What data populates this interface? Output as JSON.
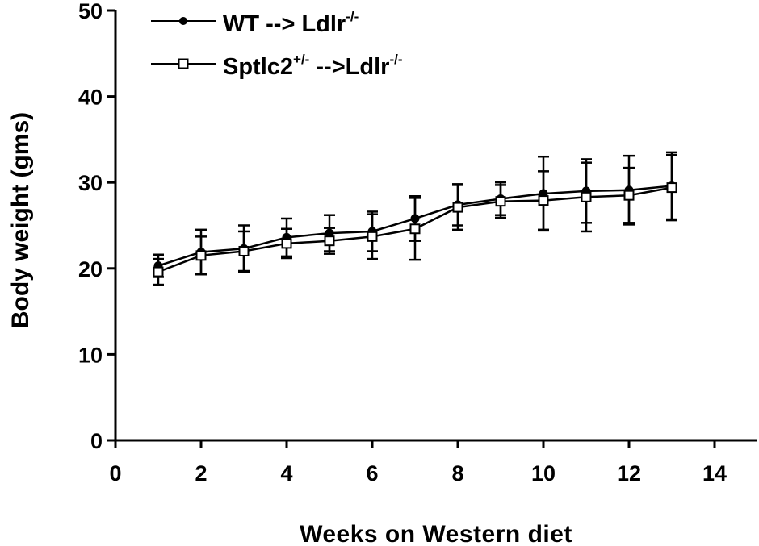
{
  "chart_data": {
    "type": "line",
    "xlabel": "Weeks on Western diet",
    "ylabel": "Body weight (gms)",
    "xlim": [
      0,
      14
    ],
    "ylim": [
      0,
      50
    ],
    "x_ticks": [
      "0",
      "2",
      "4",
      "6",
      "8",
      "10",
      "12",
      "14"
    ],
    "y_ticks": [
      "0",
      "10",
      "20",
      "30",
      "40",
      "50"
    ],
    "grid": false,
    "legend_position": "top-left",
    "x": [
      1,
      2,
      3,
      4,
      5,
      6,
      7,
      8,
      9,
      10,
      11,
      12,
      13
    ],
    "series": [
      {
        "name": "WT --> Ldlr",
        "name_sup": "-/-",
        "marker": "filled-circle",
        "values": [
          20.3,
          21.9,
          22.3,
          23.6,
          24.1,
          24.3,
          25.8,
          27.4,
          28.1,
          28.7,
          29.0,
          29.1,
          29.6
        ],
        "errors": [
          1.3,
          2.6,
          2.7,
          2.2,
          2.1,
          2.3,
          2.6,
          2.4,
          1.9,
          4.3,
          3.7,
          4.0,
          3.9
        ]
      },
      {
        "name_parts": [
          "Sptlc2",
          "+/-",
          " -->Ldlr",
          "-/-"
        ],
        "marker": "open-square",
        "values": [
          19.6,
          21.5,
          22.0,
          22.9,
          23.2,
          23.7,
          24.6,
          27.1,
          27.8,
          27.9,
          28.3,
          28.5,
          29.4
        ],
        "errors": [
          1.5,
          2.2,
          2.3,
          1.7,
          1.5,
          2.6,
          3.6,
          2.6,
          1.9,
          3.4,
          4.0,
          3.2,
          3.8
        ]
      }
    ]
  }
}
